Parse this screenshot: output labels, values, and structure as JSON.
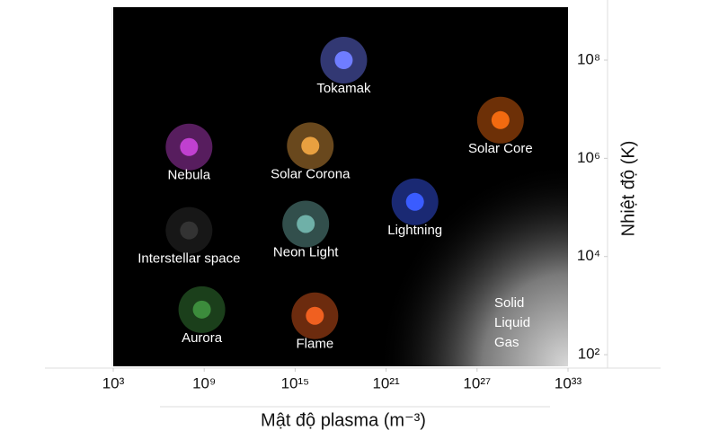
{
  "chart_data": {
    "type": "scatter",
    "x_label": "Mật độ plasma (m⁻³)",
    "y_label": "Nhiệt độ (K)",
    "xlog": true,
    "ylog": true,
    "xlim": [
      1000.0,
      1e+33
    ],
    "ylim": [
      58,
      1200000000.0
    ],
    "xticks": [
      {
        "value": 1000.0,
        "label": "10³"
      },
      {
        "value": 1000000000.0,
        "label": "10⁹"
      },
      {
        "value": 1000000000000000.0,
        "label": "10¹⁵"
      },
      {
        "value": 1e+21,
        "label": "10²¹"
      },
      {
        "value": 1e+27,
        "label": "10²⁷"
      },
      {
        "value": 1e+33,
        "label": "10³³"
      }
    ],
    "yticks": [
      {
        "value": 100.0,
        "label": "10²"
      },
      {
        "value": 10000.0,
        "label": "10⁴"
      },
      {
        "value": 1000000.0,
        "label": "10⁶"
      },
      {
        "value": 100000000.0,
        "label": "10⁸"
      }
    ],
    "points": [
      {
        "name": "Tokamak",
        "x": 1.6e+18,
        "y": 100000000.0,
        "color": "#6f7dff"
      },
      {
        "name": "Solar Core",
        "x": 3.5e+28,
        "y": 6000000.0,
        "color": "#f26a10"
      },
      {
        "name": "Nebula",
        "x": 100000000.0,
        "y": 1700000.0,
        "color": "#c040d0"
      },
      {
        "name": "Solar Corona",
        "x": 1e+16,
        "y": 1800000.0,
        "color": "#e8a040"
      },
      {
        "name": "Lightning",
        "x": 8e+22,
        "y": 130000.0,
        "color": "#3a5cff"
      },
      {
        "name": "Neon Light",
        "x": 5000000000000000.0,
        "y": 46000.0,
        "color": "#6fb0a8"
      },
      {
        "name": "Interstellar space",
        "x": 100000000.0,
        "y": 34000.0,
        "color": "#333333"
      },
      {
        "name": "Aurora",
        "x": 700000000.0,
        "y": 830,
        "color": "#3c8c3c"
      },
      {
        "name": "Flame",
        "x": 2e+16,
        "y": 620,
        "color": "#f06020"
      }
    ],
    "annotation": [
      "Solid",
      "Liquid",
      "Gas"
    ]
  }
}
